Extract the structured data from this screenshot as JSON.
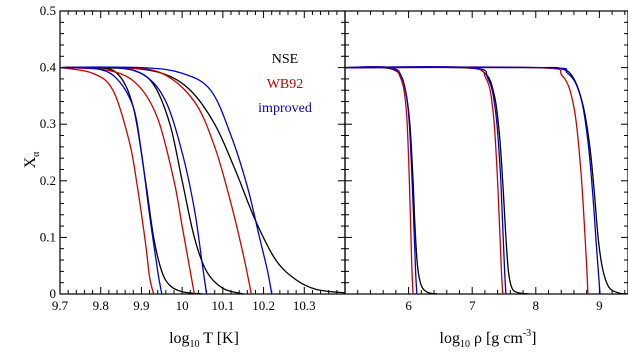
{
  "chart_data": [
    {
      "type": "line",
      "xlabel": {
        "base": "log",
        "sub": "10",
        "rest": " T [K]"
      },
      "ylabel": {
        "base": "X",
        "sub": "α"
      },
      "xlim": [
        9.7,
        10.4
      ],
      "ylim": [
        0,
        0.5
      ],
      "x_ticks": [
        "9.7",
        "9.8",
        "9.9",
        "10",
        "10.1",
        "10.2",
        "10.3"
      ],
      "x_tick_values": [
        9.7,
        9.8,
        9.9,
        10.0,
        10.1,
        10.2,
        10.3
      ],
      "y_ticks": [
        "0",
        "0.1",
        "0.2",
        "0.3",
        "0.4",
        "0.5"
      ],
      "y_tick_values": [
        0,
        0.1,
        0.2,
        0.3,
        0.4,
        0.5
      ],
      "grid": false,
      "legend_position": "top-right",
      "legend": [
        {
          "name": "NSE",
          "color": "#000000"
        },
        {
          "name": "WB92",
          "color": "#cc0000"
        },
        {
          "name": "improved",
          "color": "#0000cc"
        }
      ],
      "series": [
        {
          "group": "NSE",
          "color": "#000000",
          "x": [
            9.7,
            9.78,
            9.84,
            9.88,
            9.91,
            9.93,
            9.95,
            9.97,
            10.0,
            10.05
          ],
          "y": [
            0.4,
            0.4,
            0.39,
            0.33,
            0.2,
            0.1,
            0.04,
            0.015,
            0.004,
            0.0
          ]
        },
        {
          "group": "NSE",
          "color": "#000000",
          "x": [
            9.7,
            9.8,
            9.88,
            9.93,
            9.97,
            10.0,
            10.03,
            10.06,
            10.1,
            10.15
          ],
          "y": [
            0.4,
            0.4,
            0.395,
            0.37,
            0.3,
            0.2,
            0.1,
            0.04,
            0.01,
            0.0
          ]
        },
        {
          "group": "NSE",
          "color": "#000000",
          "x": [
            9.7,
            9.85,
            9.95,
            10.02,
            10.08,
            10.13,
            10.18,
            10.23,
            10.28,
            10.33,
            10.4
          ],
          "y": [
            0.4,
            0.4,
            0.39,
            0.36,
            0.3,
            0.22,
            0.13,
            0.06,
            0.025,
            0.008,
            0.002
          ]
        },
        {
          "group": "WB92",
          "color": "#cc0000",
          "x": [
            9.7,
            9.78,
            9.83,
            9.87,
            9.89,
            9.91,
            9.92,
            9.93
          ],
          "y": [
            0.4,
            0.39,
            0.36,
            0.27,
            0.19,
            0.09,
            0.03,
            0.0
          ]
        },
        {
          "group": "WB92",
          "color": "#cc0000",
          "x": [
            9.7,
            9.82,
            9.89,
            9.94,
            9.98,
            10.0,
            10.02,
            10.03
          ],
          "y": [
            0.4,
            0.395,
            0.37,
            0.31,
            0.2,
            0.12,
            0.04,
            0.0
          ]
        },
        {
          "group": "WB92",
          "color": "#cc0000",
          "x": [
            9.7,
            9.85,
            9.95,
            10.03,
            10.08,
            10.12,
            10.15,
            10.17
          ],
          "y": [
            0.4,
            0.4,
            0.39,
            0.34,
            0.26,
            0.16,
            0.07,
            0.0
          ]
        },
        {
          "group": "improved",
          "color": "#0000cc",
          "x": [
            9.7,
            9.79,
            9.84,
            9.88,
            9.9,
            9.92,
            9.94,
            9.95
          ],
          "y": [
            0.4,
            0.398,
            0.38,
            0.33,
            0.25,
            0.14,
            0.04,
            0.0
          ]
        },
        {
          "group": "improved",
          "color": "#0000cc",
          "x": [
            9.7,
            9.84,
            9.91,
            9.96,
            10.0,
            10.03,
            10.05,
            10.06
          ],
          "y": [
            0.4,
            0.4,
            0.385,
            0.34,
            0.25,
            0.15,
            0.05,
            0.0
          ]
        },
        {
          "group": "improved",
          "color": "#0000cc",
          "x": [
            9.7,
            9.9,
            10.0,
            10.07,
            10.12,
            10.16,
            10.19,
            10.21,
            10.22
          ],
          "y": [
            0.4,
            0.4,
            0.39,
            0.36,
            0.28,
            0.19,
            0.1,
            0.04,
            0.0
          ]
        }
      ]
    },
    {
      "type": "line",
      "xlabel": {
        "base": "log",
        "sub": "10",
        "rest": " ρ [g cm",
        "sup": "-3",
        "tail": "]"
      },
      "xlim": [
        5.0,
        9.45
      ],
      "ylim": [
        0,
        0.5
      ],
      "x_ticks": [
        "6",
        "7",
        "8",
        "9"
      ],
      "x_tick_values": [
        6,
        7,
        8,
        9
      ],
      "y_tick_values": [
        0,
        0.1,
        0.2,
        0.3,
        0.4,
        0.5
      ],
      "grid": false,
      "series": [
        {
          "group": "NSE",
          "color": "#000000",
          "x": [
            5.0,
            5.6,
            5.85,
            5.95,
            6.02,
            6.07,
            6.1,
            6.14,
            6.2,
            6.3,
            6.45
          ],
          "y": [
            0.4,
            0.4,
            0.39,
            0.36,
            0.3,
            0.2,
            0.12,
            0.05,
            0.015,
            0.003,
            0.0
          ]
        },
        {
          "group": "NSE",
          "color": "#000000",
          "x": [
            5.0,
            6.8,
            7.2,
            7.35,
            7.43,
            7.49,
            7.53,
            7.57,
            7.62,
            7.7,
            7.9
          ],
          "y": [
            0.4,
            0.4,
            0.39,
            0.35,
            0.28,
            0.18,
            0.1,
            0.04,
            0.012,
            0.003,
            0.0
          ]
        },
        {
          "group": "NSE",
          "color": "#000000",
          "x": [
            5.0,
            7.9,
            8.4,
            8.6,
            8.75,
            8.85,
            8.92,
            8.98,
            9.05,
            9.15,
            9.3,
            9.45
          ],
          "y": [
            0.4,
            0.4,
            0.398,
            0.38,
            0.33,
            0.26,
            0.18,
            0.1,
            0.045,
            0.012,
            0.002,
            0.0
          ]
        },
        {
          "group": "WB92",
          "color": "#cc0000",
          "x": [
            5.0,
            5.7,
            5.88,
            5.96,
            6.0,
            6.03,
            6.05,
            6.07
          ],
          "y": [
            0.4,
            0.4,
            0.38,
            0.33,
            0.24,
            0.13,
            0.05,
            0.0
          ]
        },
        {
          "group": "WB92",
          "color": "#cc0000",
          "x": [
            5.0,
            6.9,
            7.22,
            7.33,
            7.39,
            7.43,
            7.46,
            7.48
          ],
          "y": [
            0.4,
            0.4,
            0.38,
            0.32,
            0.22,
            0.12,
            0.04,
            0.0
          ]
        },
        {
          "group": "WB92",
          "color": "#cc0000",
          "x": [
            5.0,
            8.0,
            8.42,
            8.6,
            8.7,
            8.76,
            8.8,
            8.82
          ],
          "y": [
            0.4,
            0.4,
            0.385,
            0.33,
            0.23,
            0.13,
            0.05,
            0.0
          ]
        },
        {
          "group": "improved",
          "color": "#0000cc",
          "x": [
            5.0,
            5.72,
            5.9,
            5.99,
            6.04,
            6.08,
            6.11,
            6.13
          ],
          "y": [
            0.4,
            0.4,
            0.38,
            0.33,
            0.24,
            0.13,
            0.04,
            0.0
          ]
        },
        {
          "group": "improved",
          "color": "#0000cc",
          "x": [
            5.0,
            6.95,
            7.25,
            7.37,
            7.44,
            7.48,
            7.51,
            7.53
          ],
          "y": [
            0.4,
            0.4,
            0.38,
            0.32,
            0.22,
            0.12,
            0.04,
            0.0
          ]
        },
        {
          "group": "improved",
          "color": "#0000cc",
          "x": [
            5.0,
            8.1,
            8.5,
            8.7,
            8.82,
            8.9,
            8.95,
            8.99,
            9.01
          ],
          "y": [
            0.4,
            0.4,
            0.39,
            0.35,
            0.27,
            0.17,
            0.09,
            0.03,
            0.0
          ]
        }
      ]
    }
  ]
}
